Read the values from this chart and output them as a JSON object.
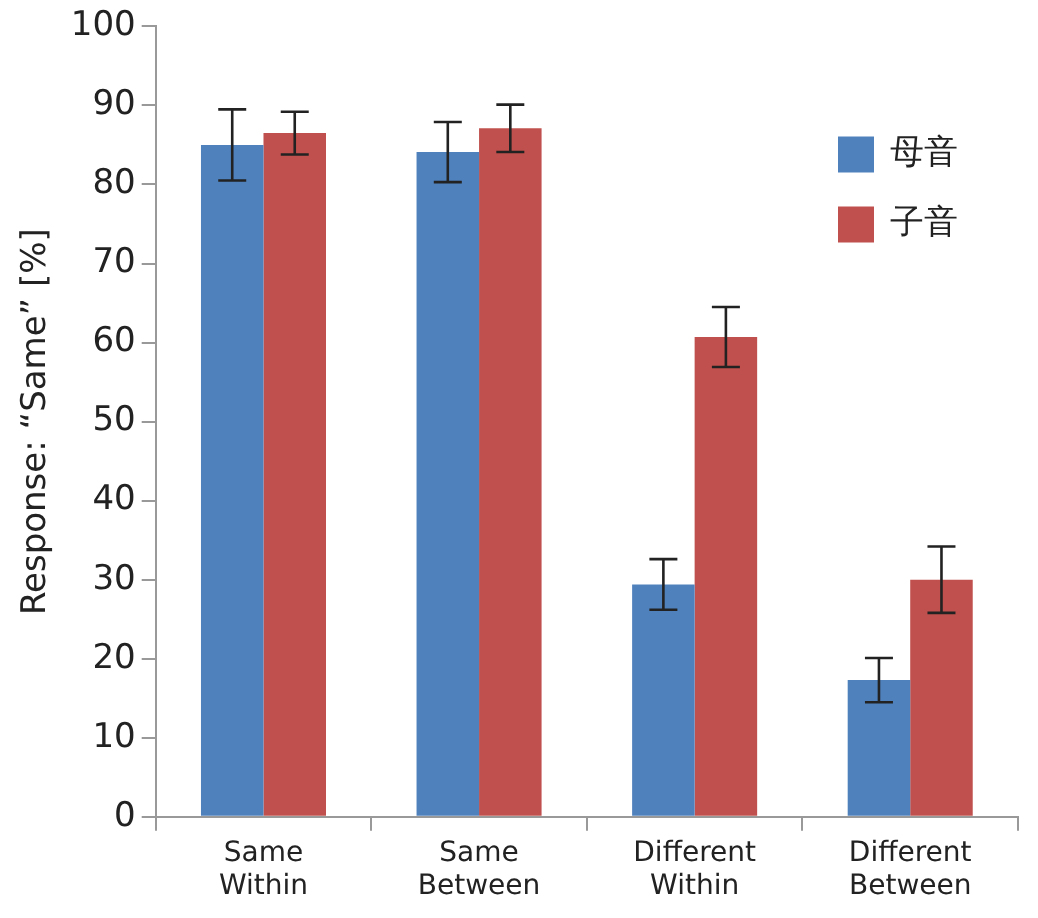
{
  "chart_data": {
    "type": "bar",
    "ylabel": "Response: “Same” [%]",
    "categories": [
      "Same Within",
      "Same Between",
      "Different Within",
      "Different Between"
    ],
    "series": [
      {
        "name": "母音",
        "color": "#4f81bd",
        "values": [
          85,
          84.1,
          29.4,
          17.3
        ],
        "errors": [
          4.5,
          3.8,
          3.2,
          2.8
        ]
      },
      {
        "name": "子音",
        "color": "#c0504d",
        "values": [
          86.5,
          87.1,
          60.7,
          30
        ],
        "errors": [
          2.7,
          3,
          3.8,
          4.2
        ]
      }
    ],
    "ylim": [
      0,
      100
    ],
    "yticks": [
      0,
      10,
      20,
      30,
      40,
      50,
      60,
      70,
      80,
      90,
      100
    ],
    "grid": false,
    "legend": "top right"
  }
}
